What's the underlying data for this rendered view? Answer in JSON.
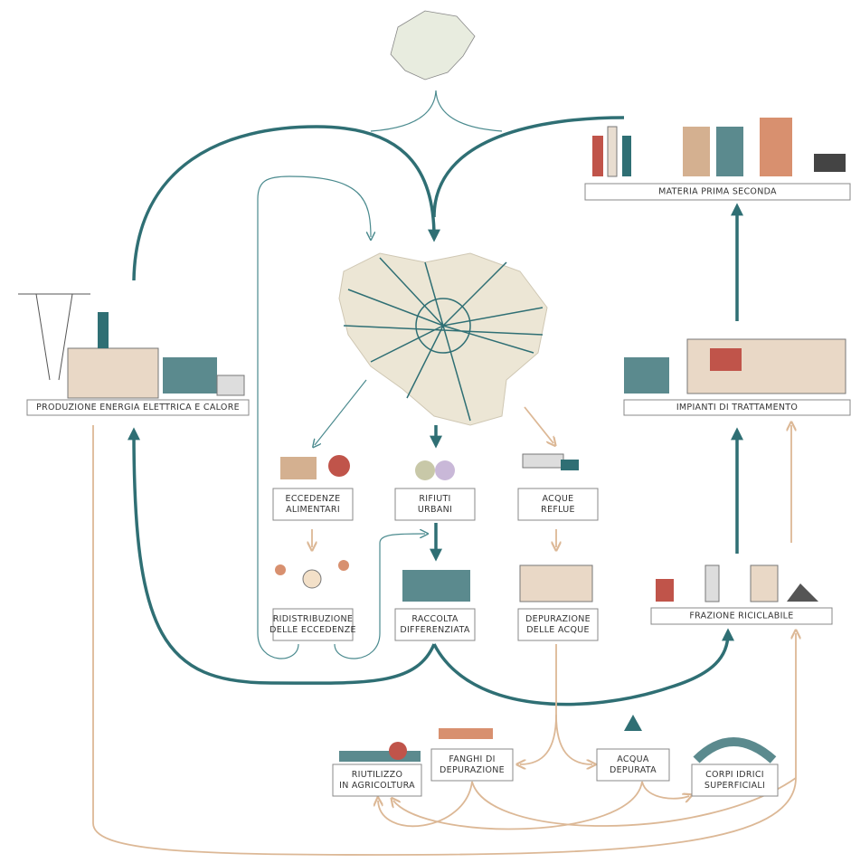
{
  "nodes": [
    {
      "lines": [
        "MATERIA PRIMA SECONDA"
      ]
    },
    {
      "lines": [
        "PRODUZIONE ENERGIA ELETTRICA E CALORE"
      ]
    },
    {
      "lines": [
        "IMPIANTI DI TRATTAMENTO"
      ]
    },
    {
      "lines": [
        "ECCEDENZE",
        "ALIMENTARI"
      ]
    },
    {
      "lines": [
        "RIFIUTI",
        "URBANI"
      ]
    },
    {
      "lines": [
        "ACQUE",
        "REFLUE"
      ]
    },
    {
      "lines": [
        "RIDISTRIBUZIONE",
        "DELLE ECCEDENZE"
      ]
    },
    {
      "lines": [
        "RACCOLTA",
        "DIFFERENZIATA"
      ]
    },
    {
      "lines": [
        "DEPURAZIONE",
        "DELLE ACQUE"
      ]
    },
    {
      "lines": [
        "FRAZIONE RICICLABILE"
      ]
    },
    {
      "lines": [
        "FANGHI DI",
        "DEPURAZIONE"
      ]
    },
    {
      "lines": [
        "ACQUA",
        "DEPURATA"
      ]
    },
    {
      "lines": [
        "RIUTILIZZO",
        "IN AGRICOLTURA"
      ]
    },
    {
      "lines": [
        "CORPI IDRICI",
        "SUPERFICIALI"
      ]
    }
  ]
}
